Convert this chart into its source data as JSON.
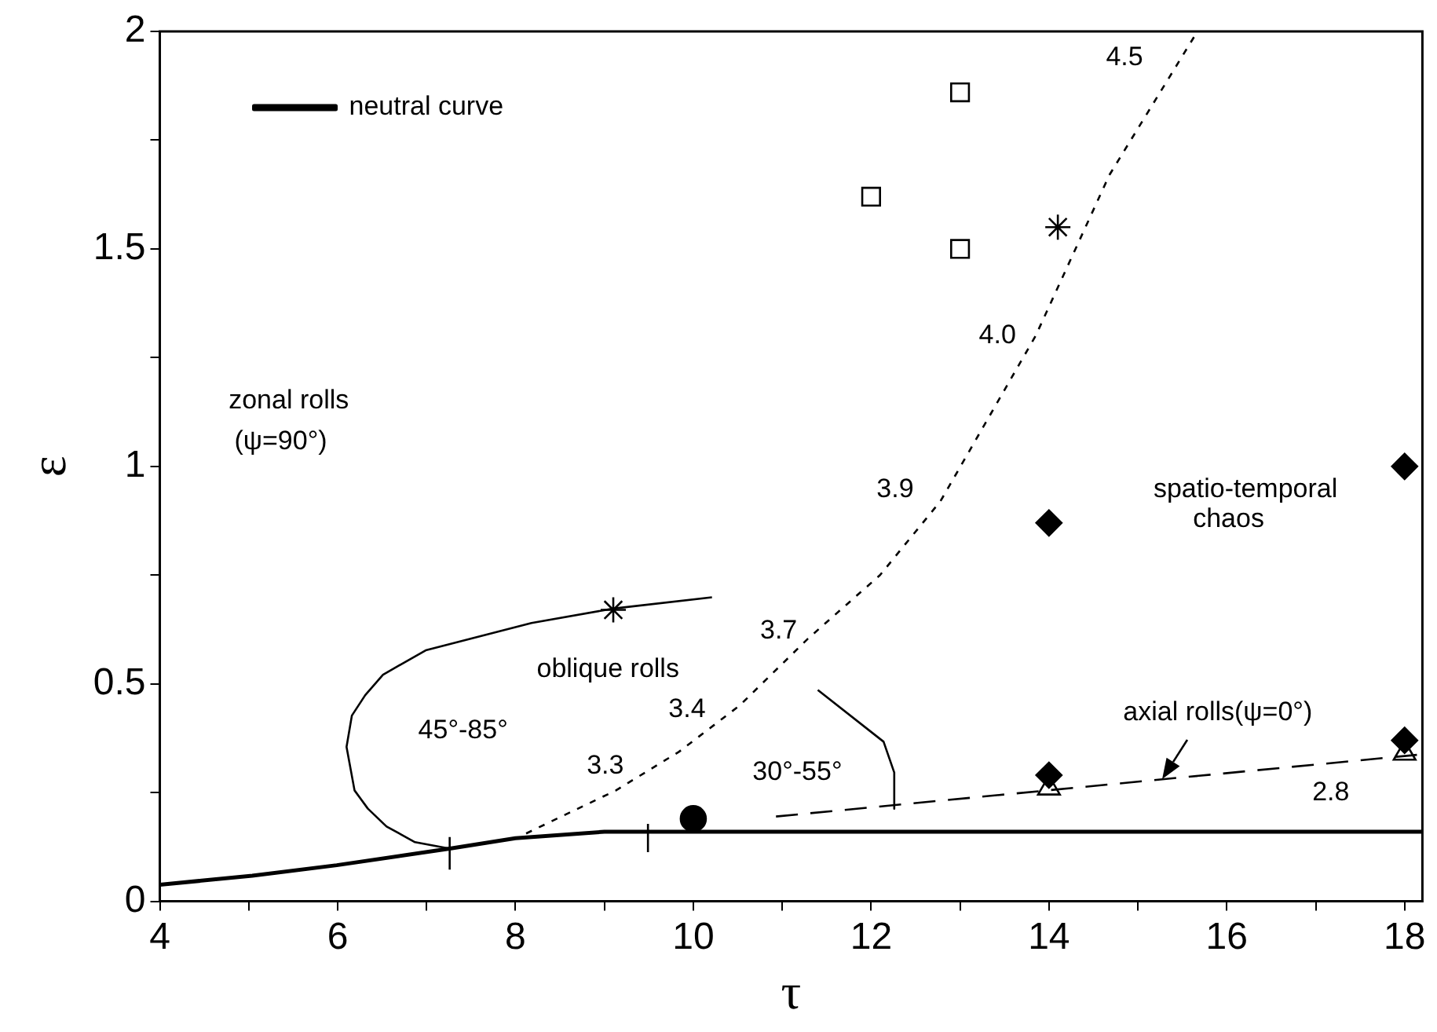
{
  "chart_data": {
    "type": "line",
    "xlabel": "τ",
    "ylabel": "ε",
    "xlim": [
      4,
      18.2
    ],
    "ylim": [
      0,
      2
    ],
    "xticks": [
      4,
      {
        "value": 5,
        "label": null
      },
      6,
      {
        "value": 7,
        "label": null
      },
      8,
      {
        "value": 9,
        "label": null
      },
      10,
      {
        "value": 11,
        "label": null
      },
      12,
      {
        "value": 13,
        "label": null
      },
      14,
      {
        "value": 15,
        "label": null
      },
      16,
      {
        "value": 17,
        "label": null
      },
      18
    ],
    "yticks": [
      0,
      {
        "value": 0.25,
        "label": null
      },
      0.5,
      {
        "value": 0.75,
        "label": null
      },
      1,
      {
        "value": 1.25,
        "label": null
      },
      1.5,
      {
        "value": 1.75,
        "label": null
      },
      2
    ],
    "grid": false,
    "legend": "top left",
    "series": [
      {
        "name": "neutral curve",
        "color": "#000000",
        "marker": "none",
        "line_style": "solid",
        "x": [
          4,
          5.04,
          5.99,
          7.26,
          8,
          9,
          18.2
        ],
        "values": [
          0.038,
          0.059,
          0.083,
          0.121,
          0.145,
          0.16,
          0.16
        ]
      },
      {
        "color": "#000000",
        "marker": "none",
        "line_style": "solid",
        "x": [
          7.26,
          6.87,
          6.55,
          6.34,
          6.19,
          6.1,
          6.16,
          6.31,
          6.51,
          6.99,
          8.18,
          9.1,
          10.21
        ],
        "values": [
          0.121,
          0.136,
          0.172,
          0.213,
          0.255,
          0.355,
          0.427,
          0.474,
          0.521,
          0.577,
          0.64,
          0.673,
          0.699
        ]
      },
      {
        "color": "#000000",
        "marker": "none",
        "line_style": "solid",
        "x": [
          11.4,
          12.14,
          12.26,
          12.26
        ],
        "values": [
          0.486,
          0.367,
          0.296,
          0.213
        ]
      },
      {
        "color": "#000000",
        "marker": "none",
        "line_style": "dotted",
        "x": [
          8.12,
          9.13,
          9.84,
          10.52,
          11.29,
          12.1,
          12.78,
          13.85,
          14.68,
          15.67
        ],
        "values": [
          0.156,
          0.255,
          0.344,
          0.45,
          0.604,
          0.75,
          0.92,
          1.3,
          1.67,
          2.0
        ]
      },
      {
        "color": "#000000",
        "marker": "none",
        "line_style": "dashed",
        "x": [
          10.93,
          18.2
        ],
        "values": [
          0.195,
          0.338
        ]
      },
      {
        "color": "#000000",
        "marker": "none",
        "line_style": "solid",
        "x": [
          7.26,
          7.26
        ],
        "values": [
          0.073,
          0.148
        ]
      },
      {
        "color": "#000000",
        "marker": "none",
        "line_style": "solid",
        "x": [
          9.49,
          9.49
        ],
        "values": [
          0.113,
          0.178
        ]
      },
      {
        "type": "scatter",
        "color": "#000000",
        "marker": "square",
        "x": [
          13,
          12,
          13
        ],
        "values": [
          1.86,
          1.62,
          1.5
        ]
      },
      {
        "type": "scatter",
        "color": "#000000",
        "marker": "cross",
        "x": [
          14.1,
          9.1
        ],
        "values": [
          1.55,
          0.67
        ]
      },
      {
        "type": "scatter",
        "color": "#000000",
        "marker": "diamond",
        "x": [
          18,
          14,
          14,
          18
        ],
        "values": [
          1,
          0.87,
          0.29,
          0.37
        ]
      },
      {
        "type": "scatter",
        "color": "#000000",
        "marker": "triangle",
        "x": [
          14,
          18
        ],
        "values": [
          0.26,
          0.34
        ]
      },
      {
        "type": "scatter",
        "color": "#000000",
        "marker": "circle",
        "x": [
          10
        ],
        "values": [
          0.19
        ]
      }
    ],
    "annotations": [
      "zonal rolls",
      "(ψ=90°)",
      "oblique rolls",
      "45°-85°",
      "30°-55°",
      "spatio-temporal",
      "chaos",
      {
        "text": "axial rolls(ψ=0°)",
        "x": 15.28,
        "y": 0.281
      },
      "3.3",
      "3.4",
      "3.7",
      "3.9",
      "4.0",
      "4.5",
      "2.8"
    ]
  }
}
